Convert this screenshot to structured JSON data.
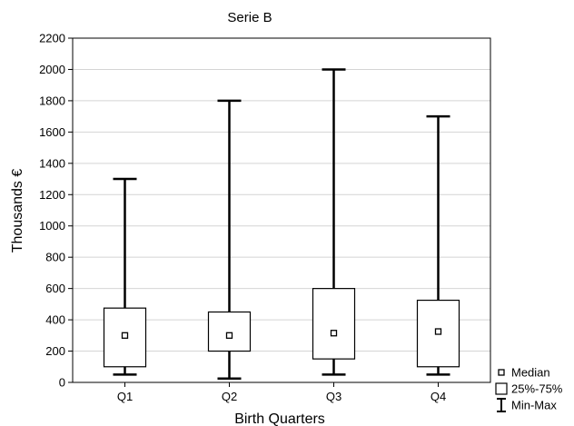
{
  "chart_data": {
    "type": "boxplot",
    "title": "Serie B",
    "xlabel": "Birth Quarters",
    "ylabel": "Thousands €",
    "ylim": [
      0,
      2200
    ],
    "yticks": [
      0,
      200,
      400,
      600,
      800,
      1000,
      1200,
      1400,
      1600,
      1800,
      2000,
      2200
    ],
    "categories": [
      "Q1",
      "Q2",
      "Q3",
      "Q4"
    ],
    "boxes": [
      {
        "category": "Q1",
        "min": 50,
        "q1": 100,
        "median": 300,
        "q3": 475,
        "max": 1300
      },
      {
        "category": "Q2",
        "min": 25,
        "q1": 200,
        "median": 300,
        "q3": 450,
        "max": 1800
      },
      {
        "category": "Q3",
        "min": 50,
        "q1": 150,
        "median": 315,
        "q3": 600,
        "max": 2000
      },
      {
        "category": "Q4",
        "min": 50,
        "q1": 100,
        "median": 325,
        "q3": 525,
        "max": 1700
      }
    ],
    "grid": true,
    "legend": {
      "position": "bottom-right",
      "items": [
        {
          "symbol": "median-square",
          "label": "Median"
        },
        {
          "symbol": "box",
          "label": "25%-75%"
        },
        {
          "symbol": "whisker",
          "label": "Min-Max"
        }
      ]
    }
  }
}
